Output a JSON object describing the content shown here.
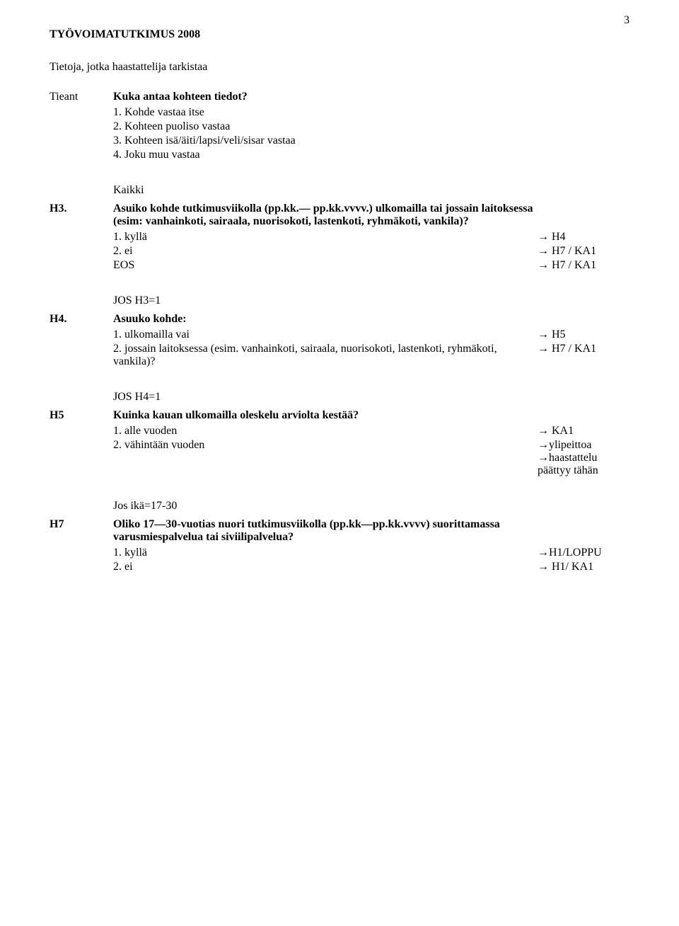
{
  "page_number": "3",
  "title": "TYÖVOIMATUTKIMUS 2008",
  "subtitle": "Tietoja, jotka haastattelija tarkistaa",
  "tieant": {
    "label": "Tieant",
    "question": "Kuka antaa kohteen tiedot?",
    "options": [
      {
        "text": "1. Kohde vastaa itse"
      },
      {
        "text": "2. Kohteen puoliso vastaa"
      },
      {
        "text": "3. Kohteen isä/äiti/lapsi/veli/sisar vastaa"
      },
      {
        "text": "4. Joku muu vastaa"
      }
    ]
  },
  "h3": {
    "pre": "Kaikki",
    "label": "H3.",
    "question": "Asuiko kohde tutkimusviikolla (pp.kk.— pp.kk.vvvv.) ulkomailla tai jossain laitoksessa (esim: vanhainkoti, sairaala, nuorisokoti, lastenkoti, ryhmäkoti, vankila)?",
    "options": [
      {
        "text": "1. kyllä",
        "arrow": "→ H4"
      },
      {
        "text": "2. ei",
        "arrow": "→ H7 / KA1"
      },
      {
        "text": "EOS",
        "arrow": "→ H7 / KA1"
      }
    ]
  },
  "h4": {
    "pre": "JOS H3=1",
    "label": "H4.",
    "question": "Asuuko kohde:",
    "options": [
      {
        "text": "1. ulkomailla vai",
        "arrow": "→ H5"
      },
      {
        "text": "2. jossain laitoksessa (esim. vanhainkoti, sairaala, nuorisokoti, lastenkoti, ryhmäkoti, vankila)?",
        "arrow": "→ H7 / KA1"
      }
    ]
  },
  "h5": {
    "pre": "JOS H4=1",
    "label": "H5",
    "question": "Kuinka kauan ulkomailla oleskelu arviolta kestää?",
    "options": [
      {
        "text": "1. alle vuoden",
        "arrow": "→ KA1"
      },
      {
        "text": "2. vähintään vuoden",
        "arrow": "→ylipeittoa\n→haastattelu\npäättyy tähän"
      }
    ]
  },
  "h7": {
    "pre": "Jos ikä=17-30",
    "label": "H7",
    "question": "Oliko 17—30-vuotias nuori tutkimusviikolla (pp.kk—pp.kk.vvvv) suorittamassa varusmiespalvelua tai siviilipalvelua?",
    "options": [
      {
        "text": "1. kyllä",
        "arrow": "→H1/LOPPU"
      },
      {
        "text": "2. ei",
        "arrow": "→ H1/ KA1"
      }
    ]
  }
}
